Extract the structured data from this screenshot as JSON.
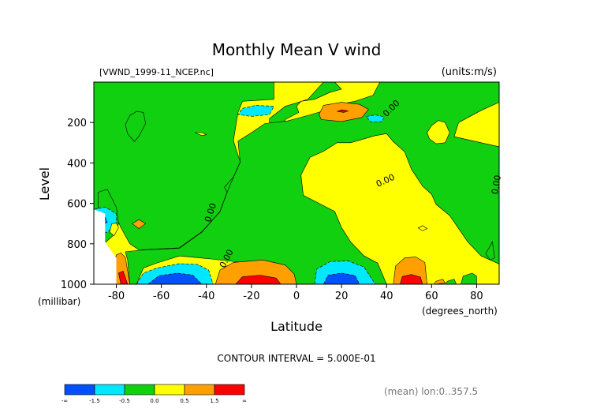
{
  "chart_data": {
    "type": "contour",
    "title": "Monthly Mean V wind",
    "subtitle_left": "[VWND_1999-11_NCEP.nc]",
    "subtitle_right": "(units:m/s)",
    "xlabel": "Latitude",
    "xunit": "(degrees_north)",
    "ylabel": "Level",
    "yunit": "(millibar)",
    "xlim": [
      -90,
      90
    ],
    "ylim": [
      1000,
      0
    ],
    "x_ticks": [
      -80,
      -60,
      -40,
      -20,
      0,
      20,
      40,
      60,
      80
    ],
    "y_ticks": [
      200,
      400,
      600,
      800,
      1000
    ],
    "contour_interval": "CONTOUR INTERVAL = 5.000E-01",
    "contour_labels": [
      "0.00",
      "0.00",
      "0.00",
      "0.00",
      "0.00"
    ],
    "footer": "(mean) lon:0..357.5",
    "colorbar": {
      "colors": [
        "#0050ff",
        "#00e8ff",
        "#10d010",
        "#ffff00",
        "#ffa000",
        "#ff0000"
      ],
      "labels": [
        "-∞",
        "-1.5",
        "-0.5",
        "0.0",
        "0.5",
        "1.5",
        "∞"
      ]
    },
    "regions": [
      {
        "class": 2,
        "pts": [
          [
            -90,
            0
          ],
          [
            -10,
            0
          ],
          [
            -10,
            85
          ],
          [
            -24,
            95
          ],
          [
            -26,
            150
          ],
          [
            -28,
            290
          ],
          [
            -25,
            395
          ],
          [
            -30,
            520
          ],
          [
            -34,
            640
          ],
          [
            -42,
            740
          ],
          [
            -52,
            820
          ],
          [
            -70,
            830
          ],
          [
            -74,
            800
          ],
          [
            -78,
            720
          ],
          [
            -81,
            645
          ],
          [
            -86,
            615
          ],
          [
            -90,
            632
          ]
        ]
      },
      {
        "class": 2,
        "pts": [
          [
            12,
            0
          ],
          [
            17,
            0
          ],
          [
            20,
            35
          ],
          [
            15,
            50
          ],
          [
            8,
            85
          ],
          [
            2,
            95
          ],
          [
            0,
            120
          ],
          [
            1,
            150
          ],
          [
            -5,
            185
          ],
          [
            -7,
            265
          ],
          [
            -8,
            330
          ],
          [
            -13,
            378
          ],
          [
            -20,
            420
          ],
          [
            -28,
            470
          ],
          [
            -32,
            520
          ],
          [
            -29,
            590
          ],
          [
            -26,
            690
          ],
          [
            -37,
            790
          ],
          [
            -41,
            745
          ],
          [
            -34,
            665
          ],
          [
            -30,
            560
          ],
          [
            -22,
            450
          ],
          [
            -12,
            400
          ],
          [
            -8,
            345
          ],
          [
            -12,
            265
          ],
          [
            -12,
            180
          ],
          [
            -5,
            120
          ],
          [
            5,
            85
          ]
        ]
      },
      {
        "class": 2,
        "pts": [
          [
            37,
            0
          ],
          [
            90,
            0
          ],
          [
            90,
            100
          ],
          [
            82,
            140
          ],
          [
            72,
            200
          ],
          [
            70,
            270
          ],
          [
            82,
            300
          ],
          [
            90,
            320
          ],
          [
            90,
            900
          ],
          [
            82,
            860
          ],
          [
            76,
            790
          ],
          [
            68,
            660
          ],
          [
            62,
            605
          ],
          [
            60,
            555
          ],
          [
            56,
            515
          ],
          [
            51,
            430
          ],
          [
            48,
            345
          ],
          [
            43,
            295
          ],
          [
            40,
            255
          ],
          [
            35,
            265
          ],
          [
            24,
            300
          ],
          [
            18,
            300
          ],
          [
            12,
            342
          ],
          [
            6,
            372
          ],
          [
            2,
            460
          ],
          [
            3,
            560
          ],
          [
            10,
            600
          ],
          [
            17,
            640
          ],
          [
            20,
            720
          ],
          [
            24,
            790
          ],
          [
            30,
            860
          ],
          [
            36,
            895
          ],
          [
            40,
            1000
          ],
          [
            -12,
            1000
          ],
          [
            -15,
            960
          ],
          [
            -22,
            895
          ],
          [
            -38,
            875
          ],
          [
            -52,
            860
          ],
          [
            -62,
            895
          ],
          [
            -68,
            920
          ],
          [
            -71,
            1000
          ],
          [
            -74,
            1000
          ],
          [
            -75,
            880
          ],
          [
            -76,
            840
          ],
          [
            -70,
            832
          ],
          [
            -52,
            822
          ],
          [
            -42,
            742
          ],
          [
            -34,
            642
          ],
          [
            -30,
            522
          ],
          [
            -25,
            397
          ],
          [
            -26,
            292
          ],
          [
            -20,
            250
          ],
          [
            -14,
            205
          ],
          [
            -4,
            192
          ],
          [
            6,
            162
          ],
          [
            12,
            142
          ],
          [
            18,
            112
          ],
          [
            26,
            95
          ],
          [
            34,
            65
          ]
        ]
      },
      {
        "class": 2,
        "pts": [
          [
            -71,
            145
          ],
          [
            -68,
            150
          ],
          [
            -67,
            205
          ],
          [
            -70,
            268
          ],
          [
            -72,
            295
          ],
          [
            -75,
            255
          ],
          [
            -76,
            210
          ],
          [
            -74,
            165
          ]
        ]
      },
      {
        "class": 3,
        "pts": [
          [
            63,
            190
          ],
          [
            66,
            200
          ],
          [
            68,
            250
          ],
          [
            66,
            300
          ],
          [
            62,
            305
          ],
          [
            59,
            280
          ],
          [
            58,
            250
          ],
          [
            60,
            215
          ]
        ]
      },
      {
        "class": 3,
        "pts": [
          [
            -45,
            250
          ],
          [
            -42,
            265
          ],
          [
            -40,
            260
          ],
          [
            -42,
            250
          ]
        ]
      },
      {
        "class": 2,
        "pts": [
          [
            -88,
            545
          ],
          [
            -84,
            530
          ],
          [
            -80,
            620
          ],
          [
            -79,
            700
          ],
          [
            -81,
            755
          ],
          [
            -85,
            795
          ],
          [
            -88,
            780
          ]
        ]
      },
      {
        "class": 3,
        "pts": [
          [
            56,
            710
          ],
          [
            58,
            725
          ],
          [
            56,
            735
          ],
          [
            54,
            722
          ]
        ]
      },
      {
        "class": 2,
        "pts": [
          [
            84,
            850
          ],
          [
            87,
            790
          ],
          [
            88,
            870
          ],
          [
            86,
            880
          ]
        ]
      },
      {
        "class": 2,
        "pts": [
          [
            73,
            1000
          ],
          [
            74,
            960
          ],
          [
            78,
            945
          ],
          [
            80,
            960
          ],
          [
            80,
            1000
          ]
        ]
      },
      {
        "class": 2,
        "pts": [
          [
            66,
            1000
          ],
          [
            67,
            985
          ],
          [
            70,
            975
          ],
          [
            71,
            1000
          ]
        ]
      },
      {
        "class": 1,
        "pts": [
          [
            -24,
            130
          ],
          [
            -18,
            115
          ],
          [
            -10,
            120
          ],
          [
            -12,
            160
          ],
          [
            -20,
            170
          ],
          [
            -26,
            160
          ]
        ]
      },
      {
        "class": 1,
        "pts": [
          [
            31,
            170
          ],
          [
            35,
            162
          ],
          [
            39,
            172
          ],
          [
            38,
            195
          ],
          [
            33,
            198
          ]
        ]
      },
      {
        "class": 4,
        "pts": [
          [
            10,
            160
          ],
          [
            12,
            115
          ],
          [
            20,
            100
          ],
          [
            28,
            110
          ],
          [
            32,
            135
          ],
          [
            29,
            175
          ],
          [
            20,
            195
          ],
          [
            11,
            185
          ]
        ]
      },
      {
        "class": 5,
        "pts": [
          [
            18,
            145
          ],
          [
            20,
            137
          ],
          [
            23,
            142
          ],
          [
            21,
            150
          ]
        ]
      },
      {
        "class": 4,
        "pts": [
          [
            -73,
            700
          ],
          [
            -70,
            680
          ],
          [
            -67,
            700
          ],
          [
            -70,
            725
          ]
        ]
      },
      {
        "class": 1,
        "pts": [
          [
            -90,
            630
          ],
          [
            -85,
            618
          ],
          [
            -80,
            652
          ],
          [
            -80,
            700
          ],
          [
            -84,
            745
          ],
          [
            -90,
            728
          ]
        ]
      },
      {
        "class": 0,
        "pts": [
          [
            -87,
            675
          ],
          [
            -85,
            668
          ],
          [
            -84,
            692
          ],
          [
            -86,
            708
          ]
        ]
      },
      {
        "class": 3,
        "pts": [
          [
            -82,
            700
          ],
          [
            -80,
            698
          ],
          [
            -79,
            720
          ],
          [
            -81,
            760
          ],
          [
            -83,
            742
          ]
        ]
      },
      {
        "class": 4,
        "pts": [
          [
            -80,
            855
          ],
          [
            -78,
            845
          ],
          [
            -76,
            868
          ],
          [
            -74,
            1000
          ],
          [
            -80,
            1000
          ],
          [
            -82,
            940
          ]
        ]
      },
      {
        "class": 5,
        "pts": [
          [
            -79,
            945
          ],
          [
            -77,
            935
          ],
          [
            -75,
            1000
          ],
          [
            -78,
            1000
          ]
        ]
      },
      {
        "class": 1,
        "pts": [
          [
            -71,
            1000
          ],
          [
            -68,
            945
          ],
          [
            -62,
            920
          ],
          [
            -52,
            898
          ],
          [
            -44,
            902
          ],
          [
            -39,
            930
          ],
          [
            -37,
            1000
          ]
        ]
      },
      {
        "class": 0,
        "pts": [
          [
            -66,
            1000
          ],
          [
            -61,
            958
          ],
          [
            -53,
            945
          ],
          [
            -46,
            955
          ],
          [
            -42,
            1000
          ]
        ]
      },
      {
        "class": 4,
        "pts": [
          [
            -36,
            1000
          ],
          [
            -34,
            930
          ],
          [
            -28,
            892
          ],
          [
            -15,
            880
          ],
          [
            -5,
            905
          ],
          [
            -1,
            950
          ],
          [
            0,
            1000
          ]
        ]
      },
      {
        "class": 5,
        "pts": [
          [
            -27,
            1000
          ],
          [
            -24,
            963
          ],
          [
            -16,
            955
          ],
          [
            -9,
            970
          ],
          [
            -7,
            1000
          ]
        ]
      },
      {
        "class": 1,
        "pts": [
          [
            8,
            1000
          ],
          [
            9,
            925
          ],
          [
            15,
            888
          ],
          [
            23,
            885
          ],
          [
            30,
            915
          ],
          [
            35,
            1000
          ]
        ]
      },
      {
        "class": 0,
        "pts": [
          [
            12,
            1000
          ],
          [
            14,
            955
          ],
          [
            20,
            945
          ],
          [
            26,
            957
          ],
          [
            28,
            1000
          ]
        ]
      },
      {
        "class": 4,
        "pts": [
          [
            43,
            1000
          ],
          [
            44,
            910
          ],
          [
            48,
            870
          ],
          [
            53,
            865
          ],
          [
            57,
            892
          ],
          [
            58,
            1000
          ]
        ]
      },
      {
        "class": 5,
        "pts": [
          [
            46,
            1000
          ],
          [
            47,
            962
          ],
          [
            51,
            952
          ],
          [
            55,
            965
          ],
          [
            56,
            1000
          ]
        ]
      },
      {
        "class": 4,
        "pts": [
          [
            61,
            1000
          ],
          [
            62,
            985
          ],
          [
            65,
            975
          ],
          [
            66,
            995
          ]
        ]
      }
    ]
  }
}
